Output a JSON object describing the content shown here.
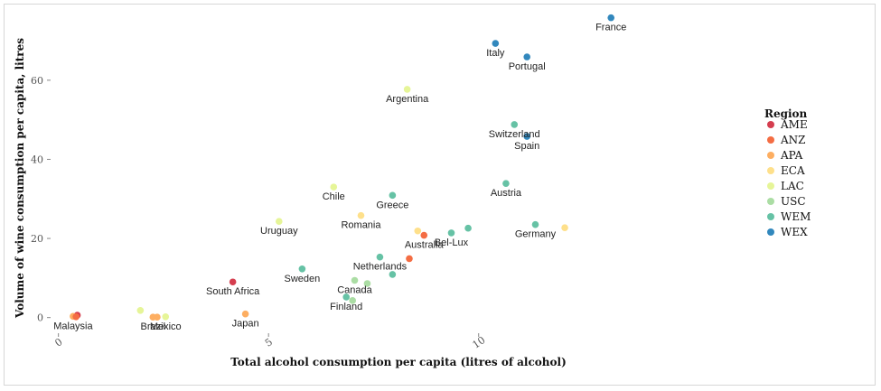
{
  "chart_data": {
    "type": "scatter",
    "xlabel": "Total alcohol consumption per capita (litres of alcohol)",
    "ylabel": "Volume of wine consumption per capita, litres",
    "xlim": [
      -0.1,
      16.5
    ],
    "ylim": [
      -3.5,
      78
    ],
    "x_ticks": [
      0,
      5,
      10
    ],
    "x_tick_labels": [
      "0",
      "5",
      "10"
    ],
    "y_ticks": [
      0,
      20,
      40,
      60
    ],
    "y_tick_labels": [
      "0",
      "20",
      "40",
      "60"
    ],
    "grid": false,
    "legend": {
      "title": "Region",
      "placement": "right",
      "entries": [
        {
          "name": "AME",
          "color": "#d53e4f"
        },
        {
          "name": "ANZ",
          "color": "#f46d43"
        },
        {
          "name": "APA",
          "color": "#fdae61"
        },
        {
          "name": "ECA",
          "color": "#fee08b"
        },
        {
          "name": "LAC",
          "color": "#e6f598"
        },
        {
          "name": "USC",
          "color": "#abdda4"
        },
        {
          "name": "WEM",
          "color": "#66c2a5"
        },
        {
          "name": "WEX",
          "color": "#3288bd"
        }
      ]
    },
    "points": [
      {
        "x": 0.45,
        "y": 0.6,
        "region": "AME",
        "label": ""
      },
      {
        "x": 0.35,
        "y": 0.3,
        "region": "APA",
        "label": "Malaysia"
      },
      {
        "x": 0.42,
        "y": 0.2,
        "region": "ANZ",
        "label": ""
      },
      {
        "x": 1.95,
        "y": 1.8,
        "region": "LAC",
        "label": ""
      },
      {
        "x": 2.25,
        "y": 0.1,
        "region": "APA",
        "label": "Brazil"
      },
      {
        "x": 2.35,
        "y": 0.1,
        "region": "APA",
        "label": ""
      },
      {
        "x": 2.55,
        "y": 0.2,
        "region": "LAC",
        "label": "Mexico"
      },
      {
        "x": 4.15,
        "y": 9.0,
        "region": "AME",
        "label": "South Africa"
      },
      {
        "x": 4.45,
        "y": 0.9,
        "region": "APA",
        "label": "Japan"
      },
      {
        "x": 5.25,
        "y": 24.3,
        "region": "LAC",
        "label": "Uruguay"
      },
      {
        "x": 5.8,
        "y": 12.3,
        "region": "WEM",
        "label": "Sweden"
      },
      {
        "x": 6.55,
        "y": 33.0,
        "region": "LAC",
        "label": "Chile"
      },
      {
        "x": 6.85,
        "y": 5.2,
        "region": "WEM",
        "label": "Finland"
      },
      {
        "x": 7.0,
        "y": 4.3,
        "region": "USC",
        "label": ""
      },
      {
        "x": 7.05,
        "y": 9.4,
        "region": "USC",
        "label": "Canada"
      },
      {
        "x": 7.2,
        "y": 25.8,
        "region": "ECA",
        "label": "Romania"
      },
      {
        "x": 7.35,
        "y": 8.6,
        "region": "USC",
        "label": ""
      },
      {
        "x": 7.65,
        "y": 15.3,
        "region": "WEM",
        "label": "Netherlands"
      },
      {
        "x": 7.95,
        "y": 30.9,
        "region": "WEM",
        "label": "Greece"
      },
      {
        "x": 7.95,
        "y": 10.9,
        "region": "WEM",
        "label": ""
      },
      {
        "x": 8.3,
        "y": 57.7,
        "region": "LAC",
        "label": "Argentina"
      },
      {
        "x": 8.35,
        "y": 14.9,
        "region": "ANZ",
        "label": ""
      },
      {
        "x": 8.55,
        "y": 21.9,
        "region": "ECA",
        "label": ""
      },
      {
        "x": 8.7,
        "y": 20.8,
        "region": "ANZ",
        "label": "Australia"
      },
      {
        "x": 9.35,
        "y": 21.4,
        "region": "WEM",
        "label": "Bel-Lux"
      },
      {
        "x": 9.75,
        "y": 22.6,
        "region": "WEM",
        "label": ""
      },
      {
        "x": 10.4,
        "y": 69.3,
        "region": "WEX",
        "label": "Italy"
      },
      {
        "x": 10.65,
        "y": 33.9,
        "region": "WEM",
        "label": "Austria"
      },
      {
        "x": 10.85,
        "y": 48.8,
        "region": "WEM",
        "label": "Switzerland"
      },
      {
        "x": 11.15,
        "y": 65.9,
        "region": "WEX",
        "label": "Portugal"
      },
      {
        "x": 11.15,
        "y": 45.8,
        "region": "WEX",
        "label": "Spain"
      },
      {
        "x": 11.35,
        "y": 23.5,
        "region": "WEM",
        "label": "Germany"
      },
      {
        "x": 12.05,
        "y": 22.7,
        "region": "ECA",
        "label": ""
      },
      {
        "x": 13.15,
        "y": 75.8,
        "region": "WEX",
        "label": "France"
      }
    ]
  }
}
